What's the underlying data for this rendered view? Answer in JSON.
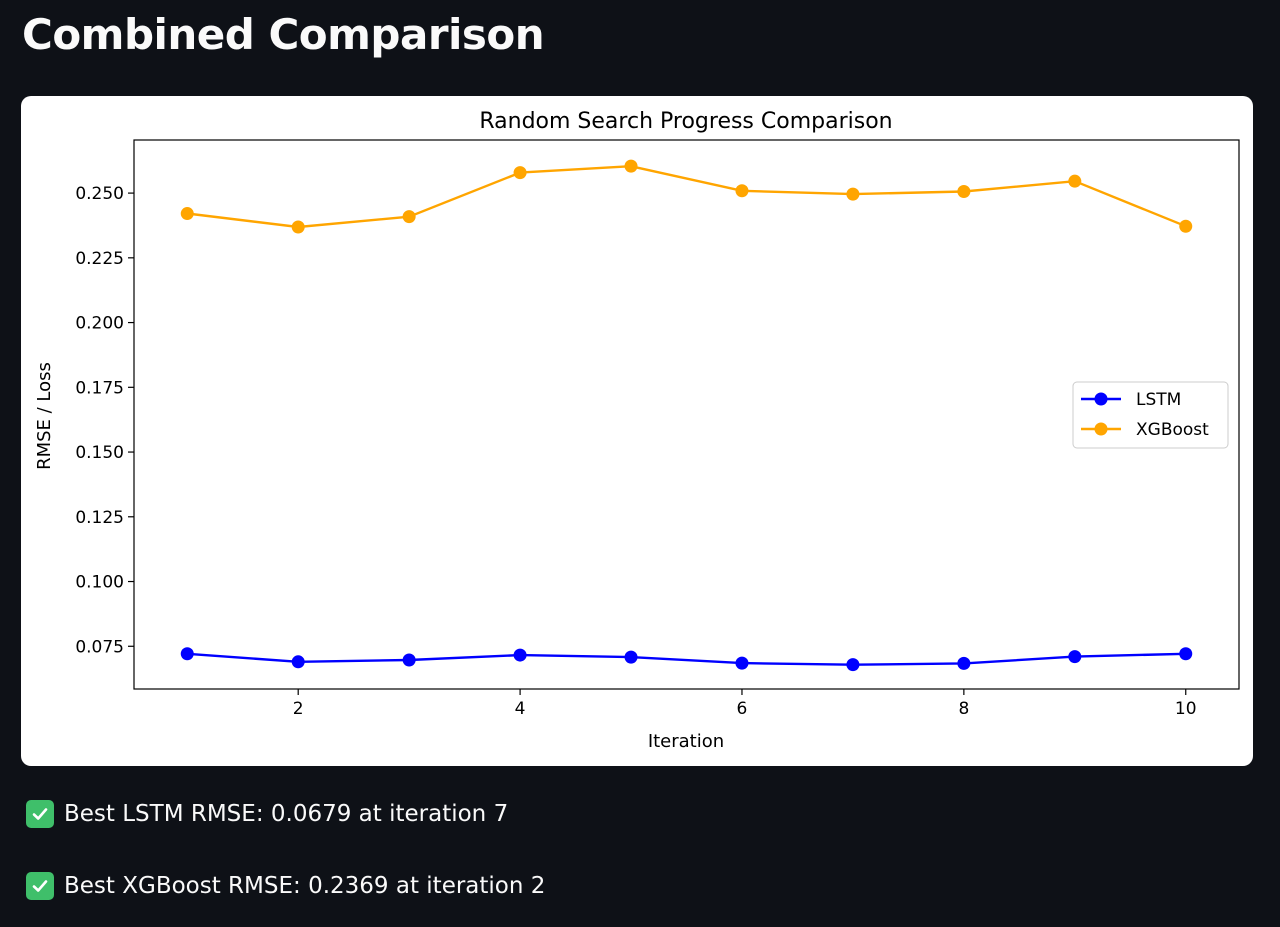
{
  "page": {
    "title": "Combined Comparison"
  },
  "chart_data": {
    "type": "line",
    "title": "Random Search Progress Comparison",
    "xlabel": "Iteration",
    "ylabel": "RMSE / Loss",
    "x": [
      1,
      2,
      3,
      4,
      5,
      6,
      7,
      8,
      9,
      10
    ],
    "xlim": [
      0.52,
      10.48
    ],
    "ylim": [
      0.0585,
      0.2705
    ],
    "xticks": [
      2,
      4,
      6,
      8,
      10
    ],
    "yticks": [
      0.075,
      0.1,
      0.125,
      0.15,
      0.175,
      0.2,
      0.225,
      0.25
    ],
    "grid": false,
    "legend_position": "center-right",
    "series": [
      {
        "name": "LSTM",
        "color": "#0000ff",
        "marker": "circle",
        "values": [
          0.0721,
          0.069,
          0.0697,
          0.0716,
          0.0708,
          0.0685,
          0.0679,
          0.0684,
          0.071,
          0.0721
        ]
      },
      {
        "name": "XGBoost",
        "color": "#ffa500",
        "marker": "circle",
        "values": [
          0.2421,
          0.2369,
          0.2409,
          0.2579,
          0.2604,
          0.2509,
          0.2496,
          0.2506,
          0.2546,
          0.2372
        ]
      }
    ]
  },
  "results": [
    {
      "icon": "check-icon",
      "text": "Best LSTM RMSE: 0.0679 at iteration 7"
    },
    {
      "icon": "check-icon",
      "text": "Best XGBoost RMSE: 0.2369 at iteration 2"
    }
  ]
}
